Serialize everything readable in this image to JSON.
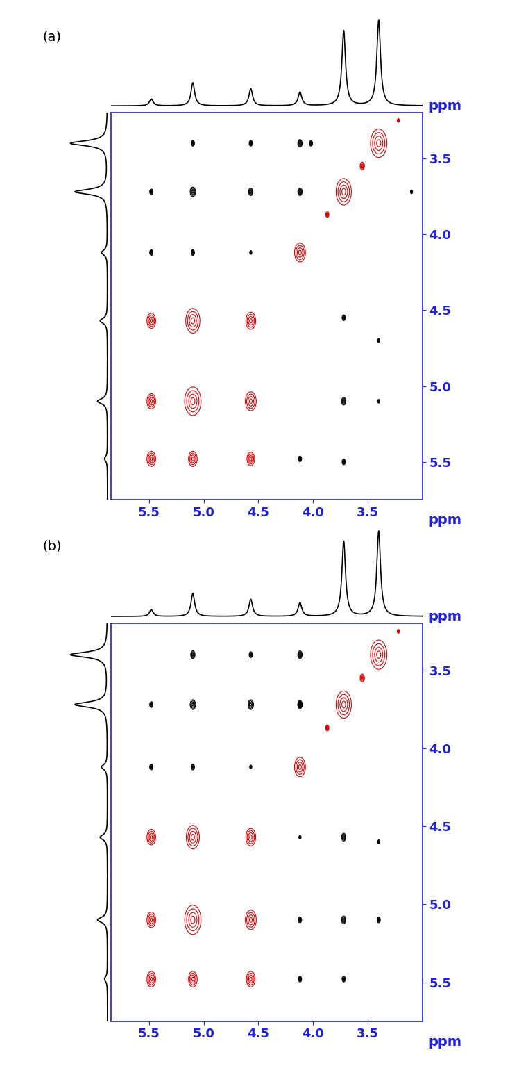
{
  "chart_data": [
    {
      "type": "contour",
      "title": "(a)",
      "x_label": "ppm",
      "y_label": "ppm",
      "xlim": [
        5.85,
        3.0
      ],
      "ylim": [
        5.75,
        3.2
      ],
      "xticks": [
        5.5,
        5.0,
        4.5,
        4.0,
        3.5
      ],
      "yticks": [
        3.5,
        4.0,
        4.5,
        5.0,
        5.5
      ],
      "series": [
        {
          "color": "#e00000",
          "x": [
            5.48,
            5.1,
            4.57,
            5.48,
            5.1,
            4.57,
            5.48,
            5.1,
            4.57,
            4.12,
            3.72,
            3.4,
            3.55,
            3.87,
            3.22
          ],
          "y": [
            4.57,
            4.57,
            4.57,
            5.1,
            5.1,
            5.1,
            5.48,
            5.48,
            5.48,
            4.12,
            3.72,
            3.4,
            3.55,
            3.87,
            3.25
          ],
          "sizes": [
            0.08,
            0.13,
            0.09,
            0.08,
            0.15,
            0.1,
            0.08,
            0.08,
            0.07,
            0.1,
            0.14,
            0.15,
            0.04,
            0.03,
            0.02
          ]
        },
        {
          "color": "#000000",
          "x": [
            5.1,
            4.57,
            4.12,
            4.02,
            5.48,
            5.1,
            4.57,
            4.12,
            3.1,
            5.48,
            5.1,
            4.57,
            4.12,
            3.72,
            3.72,
            3.72,
            3.4,
            3.4
          ],
          "y": [
            3.4,
            3.4,
            3.4,
            3.4,
            3.72,
            3.72,
            3.72,
            3.72,
            3.72,
            4.12,
            4.12,
            4.12,
            5.48,
            4.55,
            5.1,
            5.5,
            5.1,
            4.7
          ],
          "sizes": [
            0.03,
            0.03,
            0.04,
            0.03,
            0.03,
            0.05,
            0.04,
            0.04,
            0.02,
            0.03,
            0.03,
            0.02,
            0.03,
            0.03,
            0.04,
            0.03,
            0.02,
            0.02
          ]
        }
      ],
      "projection": {
        "x": [
          5.48,
          5.1,
          4.57,
          4.12,
          3.72,
          3.4
        ],
        "values": [
          0.08,
          0.27,
          0.2,
          0.16,
          0.88,
          1.0
        ]
      }
    },
    {
      "type": "contour",
      "title": "(b)",
      "x_label": "ppm",
      "y_label": "ppm",
      "xlim": [
        5.85,
        3.0
      ],
      "ylim": [
        5.75,
        3.2
      ],
      "xticks": [
        5.5,
        5.0,
        4.5,
        4.0,
        3.5
      ],
      "yticks": [
        3.5,
        4.0,
        4.5,
        5.0,
        5.5
      ],
      "series": [
        {
          "color": "#e00000",
          "x": [
            5.48,
            5.1,
            4.57,
            5.48,
            5.1,
            4.57,
            5.48,
            5.1,
            4.57,
            4.12,
            3.72,
            3.4,
            3.55,
            3.87,
            3.22
          ],
          "y": [
            4.57,
            4.57,
            4.57,
            5.1,
            5.1,
            5.1,
            5.48,
            5.48,
            5.48,
            4.12,
            3.72,
            3.4,
            3.55,
            3.87,
            3.25
          ],
          "sizes": [
            0.08,
            0.12,
            0.09,
            0.08,
            0.15,
            0.1,
            0.08,
            0.08,
            0.08,
            0.1,
            0.14,
            0.15,
            0.04,
            0.03,
            0.02
          ]
        },
        {
          "color": "#000000",
          "x": [
            5.1,
            4.57,
            4.12,
            5.48,
            5.1,
            4.57,
            4.12,
            5.48,
            5.1,
            4.57,
            4.12,
            4.12,
            4.12,
            4.12,
            3.72,
            3.72,
            3.72,
            3.4,
            3.4
          ],
          "y": [
            3.4,
            3.4,
            3.4,
            3.72,
            3.72,
            3.72,
            3.72,
            4.12,
            4.12,
            4.12,
            4.57,
            5.1,
            5.48,
            3.72,
            4.57,
            5.1,
            5.48,
            4.6,
            5.1
          ],
          "sizes": [
            0.04,
            0.03,
            0.04,
            0.03,
            0.05,
            0.05,
            0.04,
            0.03,
            0.03,
            0.02,
            0.02,
            0.03,
            0.03,
            0.04,
            0.04,
            0.04,
            0.03,
            0.02,
            0.03
          ]
        }
      ],
      "projection": {
        "x": [
          5.48,
          5.1,
          4.57,
          4.12,
          3.72,
          3.4
        ],
        "values": [
          0.08,
          0.27,
          0.2,
          0.16,
          0.88,
          1.0
        ]
      }
    }
  ]
}
